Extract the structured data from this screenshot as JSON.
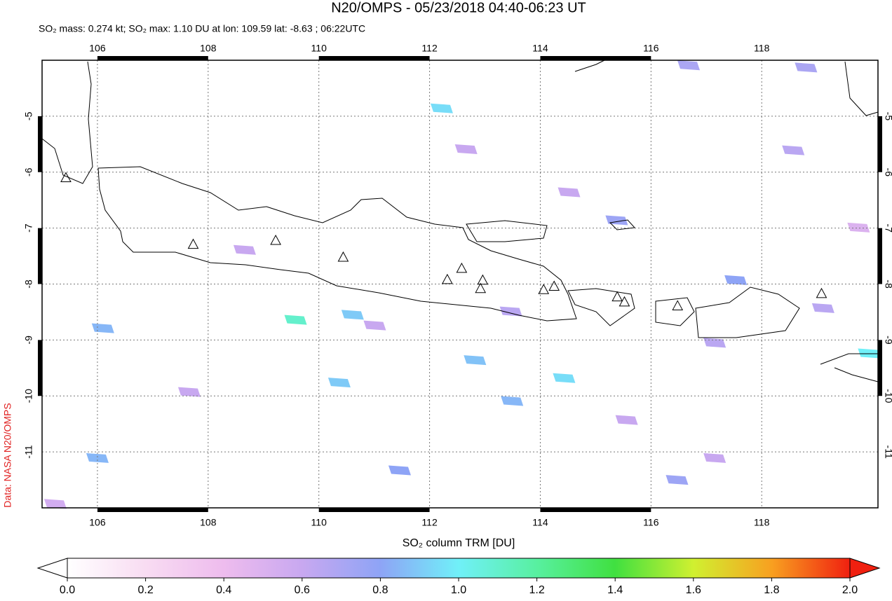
{
  "chart_data": {
    "type": "map",
    "title": "N20/OMPS - 05/23/2018 04:40-06:23 UT",
    "subtitle": "SO₂ mass: 0.274 kt; SO₂ max: 1.10 DU at lon: 109.59 lat: -8.63 ; 06:22UTC",
    "source": "Data: NASA N20/OMPS",
    "xlim": [
      105,
      120.1
    ],
    "ylim": [
      -12,
      -4
    ],
    "xticks": [
      106,
      108,
      110,
      112,
      114,
      116,
      118
    ],
    "yticks": [
      -5,
      -6,
      -7,
      -8,
      -9,
      -10,
      -11
    ],
    "grid": true,
    "pixels": {
      "lon": [
        112.22,
        109.58,
        110.61,
        110.37,
        112.82,
        113.49,
        114.43,
        106.1,
        106.0,
        111.46,
        116.47,
        118.8,
        116.68,
        118.57,
        117.15,
        117.53,
        115.38,
        113.47,
        111.01,
        108.66,
        114.52,
        112.66,
        119.94,
        105.24,
        107.66,
        115.56,
        117.15,
        119.11,
        119.75
      ],
      "lat": [
        -4.86,
        -8.64,
        -8.55,
        -9.76,
        -9.36,
        -10.09,
        -9.68,
        -8.79,
        -11.11,
        -11.33,
        -11.5,
        -4.13,
        -4.09,
        -5.61,
        -9.05,
        -7.93,
        -6.86,
        -8.49,
        -8.74,
        -7.39,
        -6.36,
        -5.59,
        -9.24,
        -11.93,
        -9.93,
        -10.43,
        -11.11,
        -8.43,
        -6.99
      ],
      "values": [
        0.95,
        1.1,
        0.9,
        0.9,
        0.88,
        0.85,
        0.95,
        0.85,
        0.85,
        0.8,
        0.75,
        0.7,
        0.7,
        0.65,
        0.65,
        0.8,
        0.75,
        0.65,
        0.6,
        0.6,
        0.6,
        0.6,
        1.0,
        0.55,
        0.6,
        0.6,
        0.6,
        0.65,
        0.5
      ]
    },
    "volcanoes": {
      "lon": [
        107.73,
        109.22,
        110.44,
        112.32,
        112.58,
        112.96,
        112.92,
        114.06,
        114.25,
        115.39,
        115.52,
        116.48,
        119.08,
        105.43
      ],
      "lat": [
        -7.3,
        -7.23,
        -7.53,
        -7.93,
        -7.73,
        -7.94,
        -8.09,
        -8.11,
        -8.05,
        -8.24,
        -8.33,
        -8.4,
        -8.18,
        -6.11
      ]
    },
    "colorbar": {
      "label": "SO₂ column TRM [DU]",
      "clim": [
        0,
        2
      ],
      "ticks": [
        {
          "value": 0,
          "label": "0.0"
        },
        0.2,
        0.4,
        0.6,
        0.8,
        {
          "value": 1,
          "label": "1.0"
        },
        1.2,
        1.4,
        1.6,
        1.8,
        {
          "value": 2,
          "label": "2.0"
        }
      ],
      "colors": [
        "#ffffff",
        "#f8dcf2",
        "#eebcee",
        "#c8a8f0",
        "#8ea4f6",
        "#70f0f8",
        "#58f0a0",
        "#40e040",
        "#d0f030",
        "#f8a020",
        "#f02010"
      ]
    }
  }
}
